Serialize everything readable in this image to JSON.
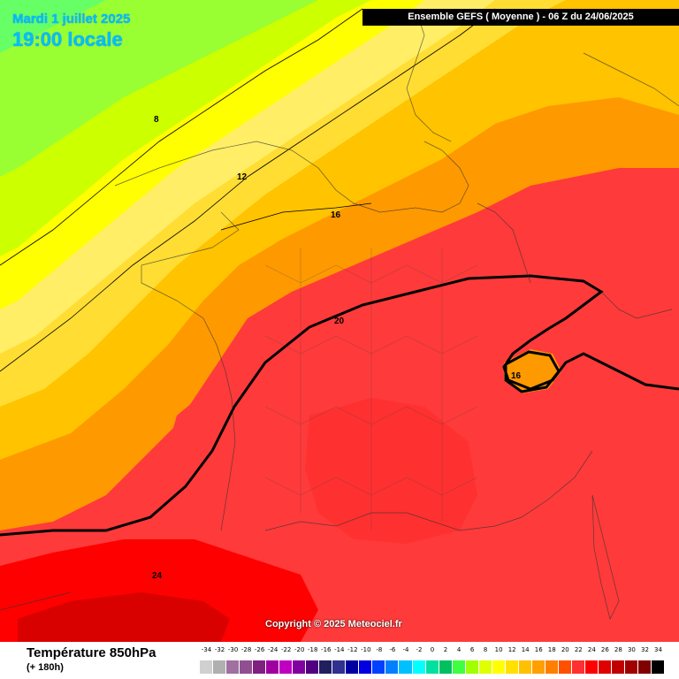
{
  "header": {
    "date": "Mardi 1 juillet 2025",
    "time": "19:00 locale",
    "model": "Ensemble GEFS  ( Moyenne )  -  06 Z du 24/06/2025"
  },
  "map": {
    "copyright": "Copyright © 2025 Meteociel.fr",
    "contour_labels": [
      "8",
      "12",
      "16",
      "20",
      "16",
      "24"
    ],
    "colors": {
      "t2": "#66ff66",
      "t4": "#99ff33",
      "t6": "#ccff00",
      "t8": "#ffff00",
      "t10": "#ffff66",
      "t12": "#ffee55",
      "t14": "#ffdd33",
      "t16": "#ffc300",
      "t18": "#ff9900",
      "t20": "#ff6a00",
      "t22": "#ff3a3a",
      "t24": "#ff0000",
      "t26": "#d90000"
    }
  },
  "footer": {
    "title": "Température 850hPa",
    "lead": "(+ 180h)"
  },
  "legend": {
    "ticks": [
      "-34",
      "-32",
      "-30",
      "-28",
      "-26",
      "-24",
      "-22",
      "-20",
      "-18",
      "-16",
      "-14",
      "-12",
      "-10",
      "-8",
      "-6",
      "-4",
      "-2",
      "0",
      "2",
      "4",
      "6",
      "8",
      "10",
      "12",
      "14",
      "16",
      "18",
      "20",
      "22",
      "24",
      "26",
      "28",
      "30",
      "32",
      "34"
    ],
    "colors": [
      "#d0d0d0",
      "#b0b0b0",
      "#a070a0",
      "#905090",
      "#802080",
      "#a000a0",
      "#c000c0",
      "#8000a0",
      "#500080",
      "#202060",
      "#303090",
      "#0000a0",
      "#0000e0",
      "#0040ff",
      "#0080ff",
      "#00c0ff",
      "#00ffff",
      "#00e0a0",
      "#00c060",
      "#40ff40",
      "#a0ff00",
      "#e0ff00",
      "#ffff00",
      "#ffe000",
      "#ffc000",
      "#ffa000",
      "#ff8000",
      "#ff5000",
      "#ff3030",
      "#ff0000",
      "#e00000",
      "#c00000",
      "#a00000",
      "#800000",
      "#000000"
    ]
  }
}
